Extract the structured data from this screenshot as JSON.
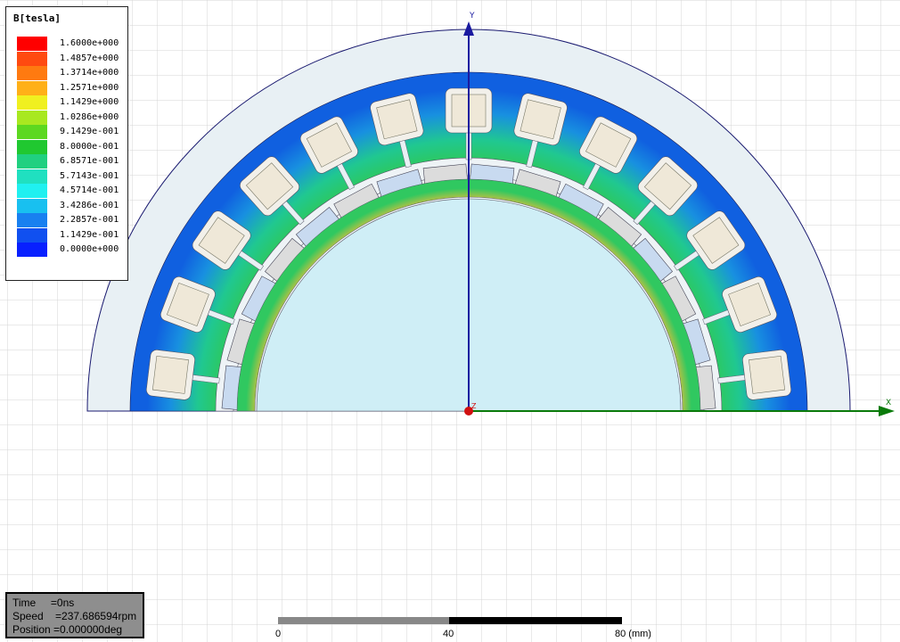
{
  "legend": {
    "title": "B[tesla]",
    "entries": [
      {
        "label": "1.6000e+000",
        "color": "#ff0000"
      },
      {
        "label": "1.4857e+000",
        "color": "#ff4a10"
      },
      {
        "label": "1.3714e+000",
        "color": "#ff7a10"
      },
      {
        "label": "1.2571e+000",
        "color": "#ffb018"
      },
      {
        "label": "1.1429e+000",
        "color": "#f0f020"
      },
      {
        "label": "1.0286e+000",
        "color": "#a8e820"
      },
      {
        "label": "9.1429e-001",
        "color": "#5cd820"
      },
      {
        "label": "8.0000e-001",
        "color": "#20c830"
      },
      {
        "label": "6.8571e-001",
        "color": "#20d080"
      },
      {
        "label": "5.7143e-001",
        "color": "#20e0c0"
      },
      {
        "label": "4.5714e-001",
        "color": "#20f0f0"
      },
      {
        "label": "3.4286e-001",
        "color": "#18c0f0"
      },
      {
        "label": "2.2857e-001",
        "color": "#1880f0"
      },
      {
        "label": "1.1429e-001",
        "color": "#1050f0"
      },
      {
        "label": "0.0000e+000",
        "color": "#0820ff"
      }
    ]
  },
  "axes": {
    "y_label": "Y",
    "x_label": "X",
    "z_label": "Z"
  },
  "status": {
    "time": "Time     =0ns",
    "speed": "Speed    =237.686594rpm",
    "position": "Position =0.000000deg"
  },
  "scale_bar": {
    "labels": [
      "0",
      "40",
      "80 (mm)"
    ]
  },
  "colors": {
    "axis": "#1a1aa0",
    "x_axis": "#0a7a0a",
    "grid": "#d4d4d4",
    "airbox": "#e8f0f4",
    "shaft": "#cfeef6",
    "winding": "#efe8d8",
    "magnet": "#c8daf0"
  },
  "geometry_counts": {
    "stator_slots_visible": 13,
    "magnets_visible": 16
  }
}
